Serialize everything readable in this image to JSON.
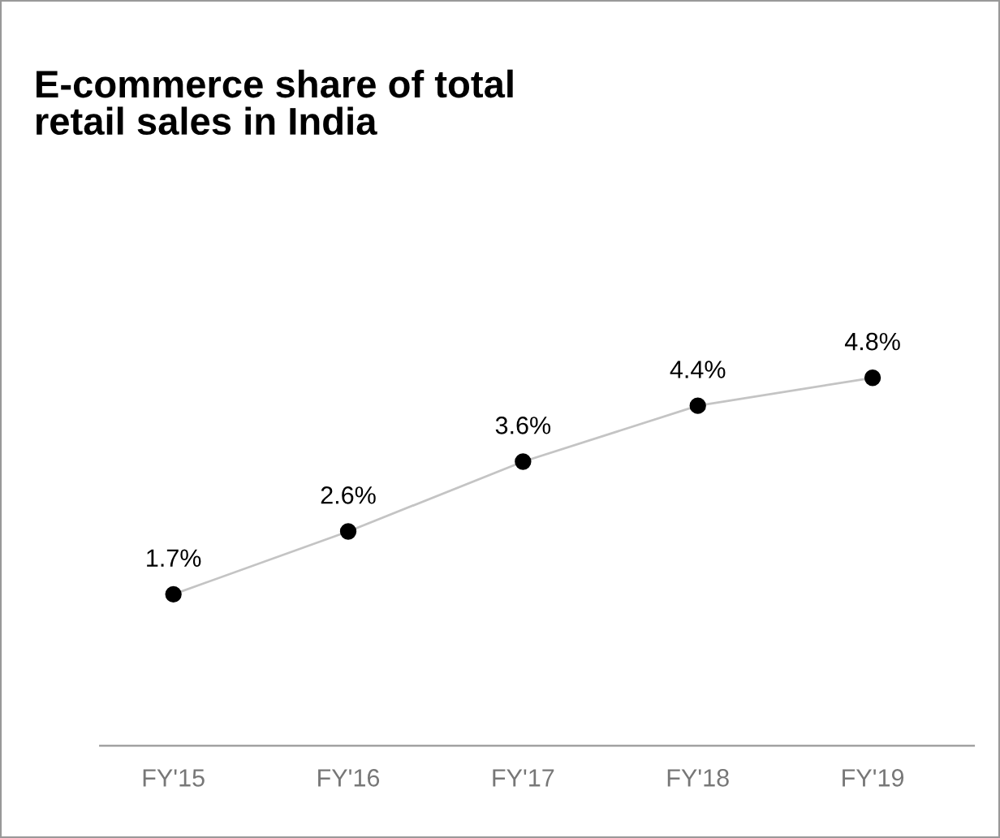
{
  "chart_data": {
    "type": "line",
    "title": "E-commerce share of total\nretail sales in India",
    "categories": [
      "FY'15",
      "FY'16",
      "FY'17",
      "FY'18",
      "FY'19"
    ],
    "series": [
      {
        "color": "#c4c4c4",
        "values": [
          1.7,
          2.6,
          3.6,
          4.4,
          4.8
        ],
        "value_labels": [
          "1.7%",
          "2.6%",
          "3.6%",
          "4.4%",
          "4.8%"
        ]
      }
    ],
    "marker": "circle",
    "grid": false,
    "legend": false
  }
}
